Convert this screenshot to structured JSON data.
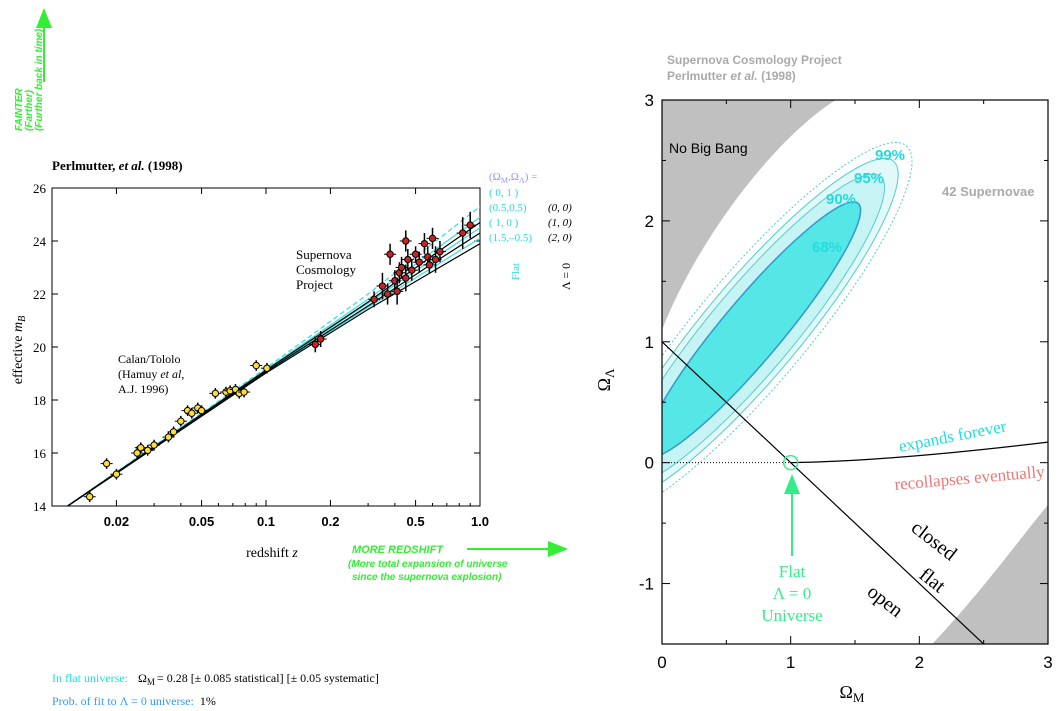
{
  "chart_data": [
    {
      "type": "scatter",
      "title": "Perlmutter, et al. (1998)",
      "title_main": "Perlmutter,",
      "title_italic": "et al.",
      "title_year": "(1998)",
      "xlabel": "redshift",
      "xlabel_var": "z",
      "ylabel": "effective",
      "ylabel_var": "m",
      "ylabel_sub": "B",
      "x_scale": "log",
      "xlim": [
        0.01,
        1.0
      ],
      "ylim": [
        14,
        26
      ],
      "x_ticks": [
        {
          "v": 0.02,
          "label": "0.02"
        },
        {
          "v": 0.05,
          "label": "0.05"
        },
        {
          "v": 0.1,
          "label": "0.1"
        },
        {
          "v": 0.2,
          "label": "0.2"
        },
        {
          "v": 0.5,
          "label": "0.5"
        },
        {
          "v": 1.0,
          "label": "1.0"
        }
      ],
      "y_ticks": [
        14,
        16,
        18,
        20,
        22,
        24,
        26
      ],
      "annotations": {
        "faint_1": "FAINTER",
        "faint_2": "(Farther)",
        "faint_3": "(Further back in time)",
        "redshift_1": "MORE REDSHIFT",
        "redshift_2": "(More total expansion of universe",
        "redshift_3": "since the supernova explosion)",
        "scp_1": "Supernova",
        "scp_2": "Cosmology",
        "scp_3": "Project",
        "ct_1": "Calan/Tololo",
        "ct_2a": "(Hamuy",
        "ct_2b": "et al",
        "ct_2c": ",",
        "ct_3": "A.J. 1996)",
        "legend_header": "(Ω_M,Ω_Λ) =",
        "flat_label": "Flat",
        "lambda0_label": "Λ = 0"
      },
      "model_labels": [
        {
          "label": "( 0,  1 )",
          "alt": ""
        },
        {
          "label": "(0.5,0.5)",
          "alt": "(0, 0)"
        },
        {
          "label": "( 1,    0 )",
          "alt": "(1, 0)"
        },
        {
          "label": "(1.5,–0.5)",
          "alt": "(2, 0)"
        }
      ],
      "models": [
        {
          "name": "(0, 1)",
          "style": "dashed",
          "color": "#33dddd",
          "y": [
            [
              0.01,
              13.6
            ],
            [
              0.1,
              19.2
            ],
            [
              0.3,
              22.0
            ],
            [
              0.6,
              23.9
            ],
            [
              1.0,
              25.3
            ]
          ]
        },
        {
          "name": "(0.5, 0.5)",
          "style": "solid",
          "color": "#33dddd",
          "y": [
            [
              0.01,
              13.6
            ],
            [
              0.1,
              19.15
            ],
            [
              0.3,
              21.8
            ],
            [
              0.6,
              23.6
            ],
            [
              1.0,
              24.9
            ]
          ]
        },
        {
          "name": "(1, 0)",
          "style": "solid",
          "color": "#33dddd",
          "y": [
            [
              0.01,
              13.6
            ],
            [
              0.1,
              19.1
            ],
            [
              0.3,
              21.65
            ],
            [
              0.6,
              23.3
            ],
            [
              1.0,
              24.5
            ]
          ]
        },
        {
          "name": "(1.5, -0.5)",
          "style": "solid",
          "color": "#33dddd",
          "y": [
            [
              0.01,
              13.6
            ],
            [
              0.1,
              19.05
            ],
            [
              0.3,
              21.5
            ],
            [
              0.6,
              23.0
            ],
            [
              1.0,
              24.1
            ]
          ]
        },
        {
          "name": "(0, 0)",
          "style": "solid",
          "color": "#000000",
          "y": [
            [
              0.01,
              13.6
            ],
            [
              0.1,
              19.12
            ],
            [
              0.3,
              21.7
            ],
            [
              0.6,
              23.45
            ],
            [
              1.0,
              24.7
            ]
          ]
        },
        {
          "name": "(1, 0) L0",
          "style": "solid",
          "color": "#000000",
          "y": [
            [
              0.01,
              13.6
            ],
            [
              0.1,
              19.07
            ],
            [
              0.3,
              21.55
            ],
            [
              0.6,
              23.15
            ],
            [
              1.0,
              24.3
            ]
          ]
        },
        {
          "name": "(2, 0)",
          "style": "solid",
          "color": "#000000",
          "y": [
            [
              0.01,
              13.6
            ],
            [
              0.1,
              19.02
            ],
            [
              0.3,
              21.42
            ],
            [
              0.6,
              22.85
            ],
            [
              1.0,
              23.9
            ]
          ]
        }
      ],
      "calan_tololo": [
        [
          0.015,
          14.35,
          0.2
        ],
        [
          0.018,
          15.6,
          0.2
        ],
        [
          0.02,
          15.2,
          0.2
        ],
        [
          0.025,
          16.0,
          0.25
        ],
        [
          0.026,
          16.2,
          0.2
        ],
        [
          0.028,
          16.1,
          0.2
        ],
        [
          0.03,
          16.3,
          0.2
        ],
        [
          0.035,
          16.6,
          0.2
        ],
        [
          0.037,
          16.8,
          0.2
        ],
        [
          0.04,
          17.2,
          0.2
        ],
        [
          0.043,
          17.6,
          0.2
        ],
        [
          0.045,
          17.5,
          0.2
        ],
        [
          0.048,
          17.7,
          0.2
        ],
        [
          0.05,
          17.6,
          0.2
        ],
        [
          0.058,
          18.25,
          0.2
        ],
        [
          0.065,
          18.3,
          0.2
        ],
        [
          0.068,
          18.35,
          0.2
        ],
        [
          0.072,
          18.4,
          0.2
        ],
        [
          0.075,
          18.25,
          0.2
        ],
        [
          0.079,
          18.3,
          0.2
        ],
        [
          0.09,
          19.3,
          0.2
        ],
        [
          0.101,
          19.2,
          0.2
        ]
      ],
      "scp": [
        [
          0.17,
          20.1,
          0.3
        ],
        [
          0.18,
          20.3,
          0.3
        ],
        [
          0.32,
          21.8,
          0.3
        ],
        [
          0.35,
          22.3,
          0.5
        ],
        [
          0.37,
          22.0,
          0.4
        ],
        [
          0.38,
          23.5,
          0.4
        ],
        [
          0.4,
          22.5,
          0.4
        ],
        [
          0.41,
          22.1,
          0.5
        ],
        [
          0.42,
          22.8,
          0.4
        ],
        [
          0.43,
          23.0,
          0.4
        ],
        [
          0.45,
          22.6,
          0.5
        ],
        [
          0.46,
          23.3,
          0.4
        ],
        [
          0.48,
          22.9,
          0.4
        ],
        [
          0.5,
          23.5,
          0.3
        ],
        [
          0.52,
          23.2,
          0.4
        ],
        [
          0.55,
          23.9,
          0.4
        ],
        [
          0.57,
          23.4,
          0.4
        ],
        [
          0.58,
          23.1,
          0.3
        ],
        [
          0.62,
          23.3,
          0.5
        ],
        [
          0.65,
          23.6,
          0.4
        ],
        [
          0.83,
          24.3,
          0.6
        ],
        [
          0.45,
          24.0,
          0.4
        ],
        [
          0.6,
          24.1,
          0.4
        ],
        [
          0.9,
          24.6,
          0.5
        ]
      ]
    },
    {
      "type": "contour",
      "title_1": "Supernova Cosmology Project",
      "title_2a": "Perlmutter",
      "title_2b": "et al.",
      "title_2c": "(1998)",
      "xlabel": "Ω",
      "xlabel_sub": "M",
      "ylabel": "Ω",
      "ylabel_sub": "Λ",
      "xlim": [
        0,
        3
      ],
      "ylim": [
        -1.5,
        3
      ],
      "x_ticks": [
        0,
        1,
        2,
        3
      ],
      "y_ticks": [
        -1,
        0,
        1,
        2,
        3
      ],
      "contour_levels": [
        "68%",
        "90%",
        "95%",
        "99%"
      ],
      "region_labels": {
        "no_big_bang": "No Big Bang",
        "supernovae": "42 Supernovae",
        "expands": "expands forever",
        "recollapses": "recollapses eventually",
        "closed": "closed",
        "flat": "flat",
        "open": "open",
        "flat_universe_1": "Flat",
        "flat_universe_2": "Λ = 0",
        "flat_universe_3": "Universe"
      },
      "ellipse_center": [
        0.7,
        1.1
      ],
      "flat_point": [
        1.0,
        0.0
      ]
    }
  ],
  "footer": {
    "line1_label": "In flat universe:",
    "line1_value": "= 0.28 [± 0.085 statistical] [± 0.05 systematic]",
    "line1_symbol": "Ω",
    "line1_sub": "M",
    "line2_label": "Prob. of fit to Λ = 0 universe:",
    "line2_value": "1%"
  },
  "colors": {
    "green": "#33ee33",
    "cyan": "#22dddd",
    "lavender": "#9999ee",
    "salmon": "#ee7777",
    "gray": "#c0c0c0",
    "contour_fill": "#55e6e6",
    "contour_light": "#c8f4f4",
    "blue_label": "#3399ff",
    "yellow": "#ffdd33",
    "red": "#cc2222"
  }
}
